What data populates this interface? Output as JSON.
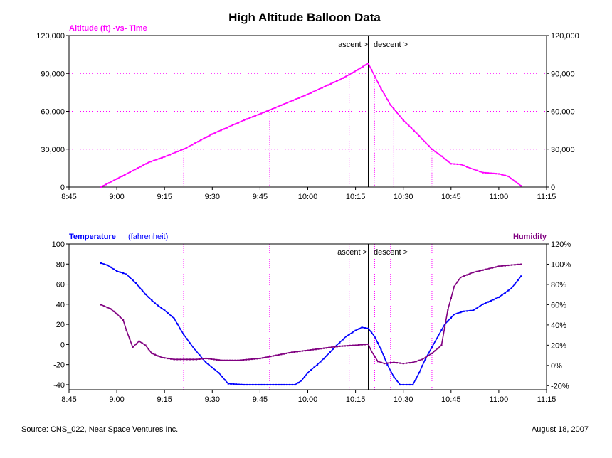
{
  "title": "High Altitude Balloon Data",
  "footer": {
    "source": "Source: CNS_022, Near Space Ventures Inc.",
    "date": "August 18, 2007"
  },
  "annotations": {
    "ascent": "ascent >",
    "descent": "descent >"
  },
  "colors": {
    "altitude": "#ff00ff",
    "temperature": "#0000ff",
    "humidity": "#800080",
    "grid": "#ff00ff"
  },
  "chart_data": [
    {
      "type": "line",
      "title": "Altitude (ft) -vs- Time",
      "xlabel": "",
      "ylabel": "",
      "x_ticks": [
        "8:45",
        "9:00",
        "9:15",
        "9:30",
        "9:45",
        "10:00",
        "10:15",
        "10:30",
        "10:45",
        "11:00",
        "11:15"
      ],
      "xlim": [
        "8:45",
        "11:15"
      ],
      "ylim": [
        0,
        120000
      ],
      "y_ticks": [
        "0",
        "30,000",
        "60,000",
        "90,000",
        "120,000"
      ],
      "y_ticks_right": [
        "0",
        "30,000",
        "60,000",
        "90,000",
        "120,000"
      ],
      "grid": "horizontal dotted",
      "event_time": "10:19",
      "marker_times": [
        "9:21",
        "9:48",
        "10:13",
        "10:21",
        "10:27",
        "10:39"
      ],
      "series": [
        {
          "name": "Altitude (ft)",
          "points": [
            [
              "8:55",
              0
            ],
            [
              "9:00",
              6500
            ],
            [
              "9:05",
              13000
            ],
            [
              "9:10",
              19500
            ],
            [
              "9:15",
              24000
            ],
            [
              "9:21",
              30000
            ],
            [
              "9:30",
              42000
            ],
            [
              "9:40",
              53000
            ],
            [
              "9:48",
              61000
            ],
            [
              "10:00",
              73500
            ],
            [
              "10:10",
              85000
            ],
            [
              "10:13",
              89000
            ],
            [
              "10:19",
              98000
            ],
            [
              "10:21",
              88000
            ],
            [
              "10:23",
              78000
            ],
            [
              "10:26",
              65000
            ],
            [
              "10:30",
              53000
            ],
            [
              "10:35",
              40500
            ],
            [
              "10:39",
              30000
            ],
            [
              "10:42",
              24500
            ],
            [
              "10:45",
              18500
            ],
            [
              "10:48",
              18000
            ],
            [
              "10:51",
              15000
            ],
            [
              "10:55",
              11500
            ],
            [
              "11:00",
              10500
            ],
            [
              "11:03",
              8500
            ],
            [
              "11:07",
              1000
            ]
          ]
        }
      ]
    },
    {
      "type": "line",
      "title": "Temperature",
      "title_note": "(fahrenheit)",
      "right_title": "Humidity",
      "xlabel": "",
      "ylabel": "",
      "x_ticks": [
        "8:45",
        "9:00",
        "9:15",
        "9:30",
        "9:45",
        "10:00",
        "10:15",
        "10:30",
        "10:45",
        "11:00",
        "11:15"
      ],
      "xlim": [
        "8:45",
        "11:15"
      ],
      "ylim": [
        -45,
        100
      ],
      "y_ticks": [
        "100",
        "80",
        "60",
        "40",
        "20",
        "0",
        "-20",
        "-40"
      ],
      "y2lim": [
        -24,
        120
      ],
      "y2_ticks": [
        "120%",
        "100%",
        "80%",
        "60%",
        "40%",
        "20%",
        "0%",
        "-20%"
      ],
      "grid": "none",
      "event_time": "10:19",
      "marker_times": [
        "9:21",
        "9:48",
        "10:13",
        "10:21",
        "10:26",
        "10:39"
      ],
      "series": [
        {
          "name": "Temperature",
          "axis": "left",
          "points": [
            [
              "8:55",
              81
            ],
            [
              "8:57",
              79
            ],
            [
              "9:00",
              73
            ],
            [
              "9:03",
              70
            ],
            [
              "9:06",
              61
            ],
            [
              "9:09",
              50
            ],
            [
              "9:12",
              41
            ],
            [
              "9:15",
              34
            ],
            [
              "9:18",
              26
            ],
            [
              "9:21",
              10
            ],
            [
              "9:24",
              -3
            ],
            [
              "9:28",
              -18
            ],
            [
              "9:32",
              -28
            ],
            [
              "9:35",
              -39
            ],
            [
              "9:40",
              -40
            ],
            [
              "9:50",
              -40
            ],
            [
              "9:56",
              -40
            ],
            [
              "9:58",
              -36
            ],
            [
              "10:00",
              -28
            ],
            [
              "10:03",
              -20
            ],
            [
              "10:06",
              -11
            ],
            [
              "10:09",
              -1
            ],
            [
              "10:12",
              8
            ],
            [
              "10:15",
              14
            ],
            [
              "10:17",
              17
            ],
            [
              "10:19",
              16
            ],
            [
              "10:21",
              8
            ],
            [
              "10:23",
              -5
            ],
            [
              "10:25",
              -20
            ],
            [
              "10:27",
              -32
            ],
            [
              "10:29",
              -40
            ],
            [
              "10:33",
              -40
            ],
            [
              "10:35",
              -28
            ],
            [
              "10:37",
              -14
            ],
            [
              "10:40",
              3
            ],
            [
              "10:43",
              20
            ],
            [
              "10:46",
              30
            ],
            [
              "10:49",
              33
            ],
            [
              "10:52",
              34
            ],
            [
              "10:55",
              40
            ],
            [
              "11:00",
              47
            ],
            [
              "11:04",
              56
            ],
            [
              "11:07",
              68
            ]
          ]
        },
        {
          "name": "Humidity",
          "axis": "right",
          "points": [
            [
              "8:55",
              60
            ],
            [
              "8:58",
              56
            ],
            [
              "9:00",
              51
            ],
            [
              "9:02",
              45
            ],
            [
              "9:03",
              35
            ],
            [
              "9:05",
              18
            ],
            [
              "9:07",
              24
            ],
            [
              "9:09",
              20
            ],
            [
              "9:11",
              12
            ],
            [
              "9:14",
              8
            ],
            [
              "9:18",
              6
            ],
            [
              "9:21",
              6
            ],
            [
              "9:25",
              6
            ],
            [
              "9:28",
              7
            ],
            [
              "9:33",
              5
            ],
            [
              "9:38",
              5
            ],
            [
              "9:45",
              7
            ],
            [
              "9:50",
              10
            ],
            [
              "9:55",
              13
            ],
            [
              "10:00",
              15
            ],
            [
              "10:05",
              17
            ],
            [
              "10:10",
              19
            ],
            [
              "10:15",
              20
            ],
            [
              "10:19",
              21
            ],
            [
              "10:20",
              14
            ],
            [
              "10:22",
              4
            ],
            [
              "10:24",
              2
            ],
            [
              "10:27",
              3
            ],
            [
              "10:30",
              2
            ],
            [
              "10:33",
              3
            ],
            [
              "10:36",
              6
            ],
            [
              "10:39",
              12
            ],
            [
              "10:42",
              20
            ],
            [
              "10:44",
              55
            ],
            [
              "10:46",
              78
            ],
            [
              "10:48",
              87
            ],
            [
              "10:52",
              92
            ],
            [
              "10:56",
              95
            ],
            [
              "11:00",
              98
            ],
            [
              "11:03",
              99
            ],
            [
              "11:07",
              100
            ]
          ]
        }
      ]
    }
  ]
}
